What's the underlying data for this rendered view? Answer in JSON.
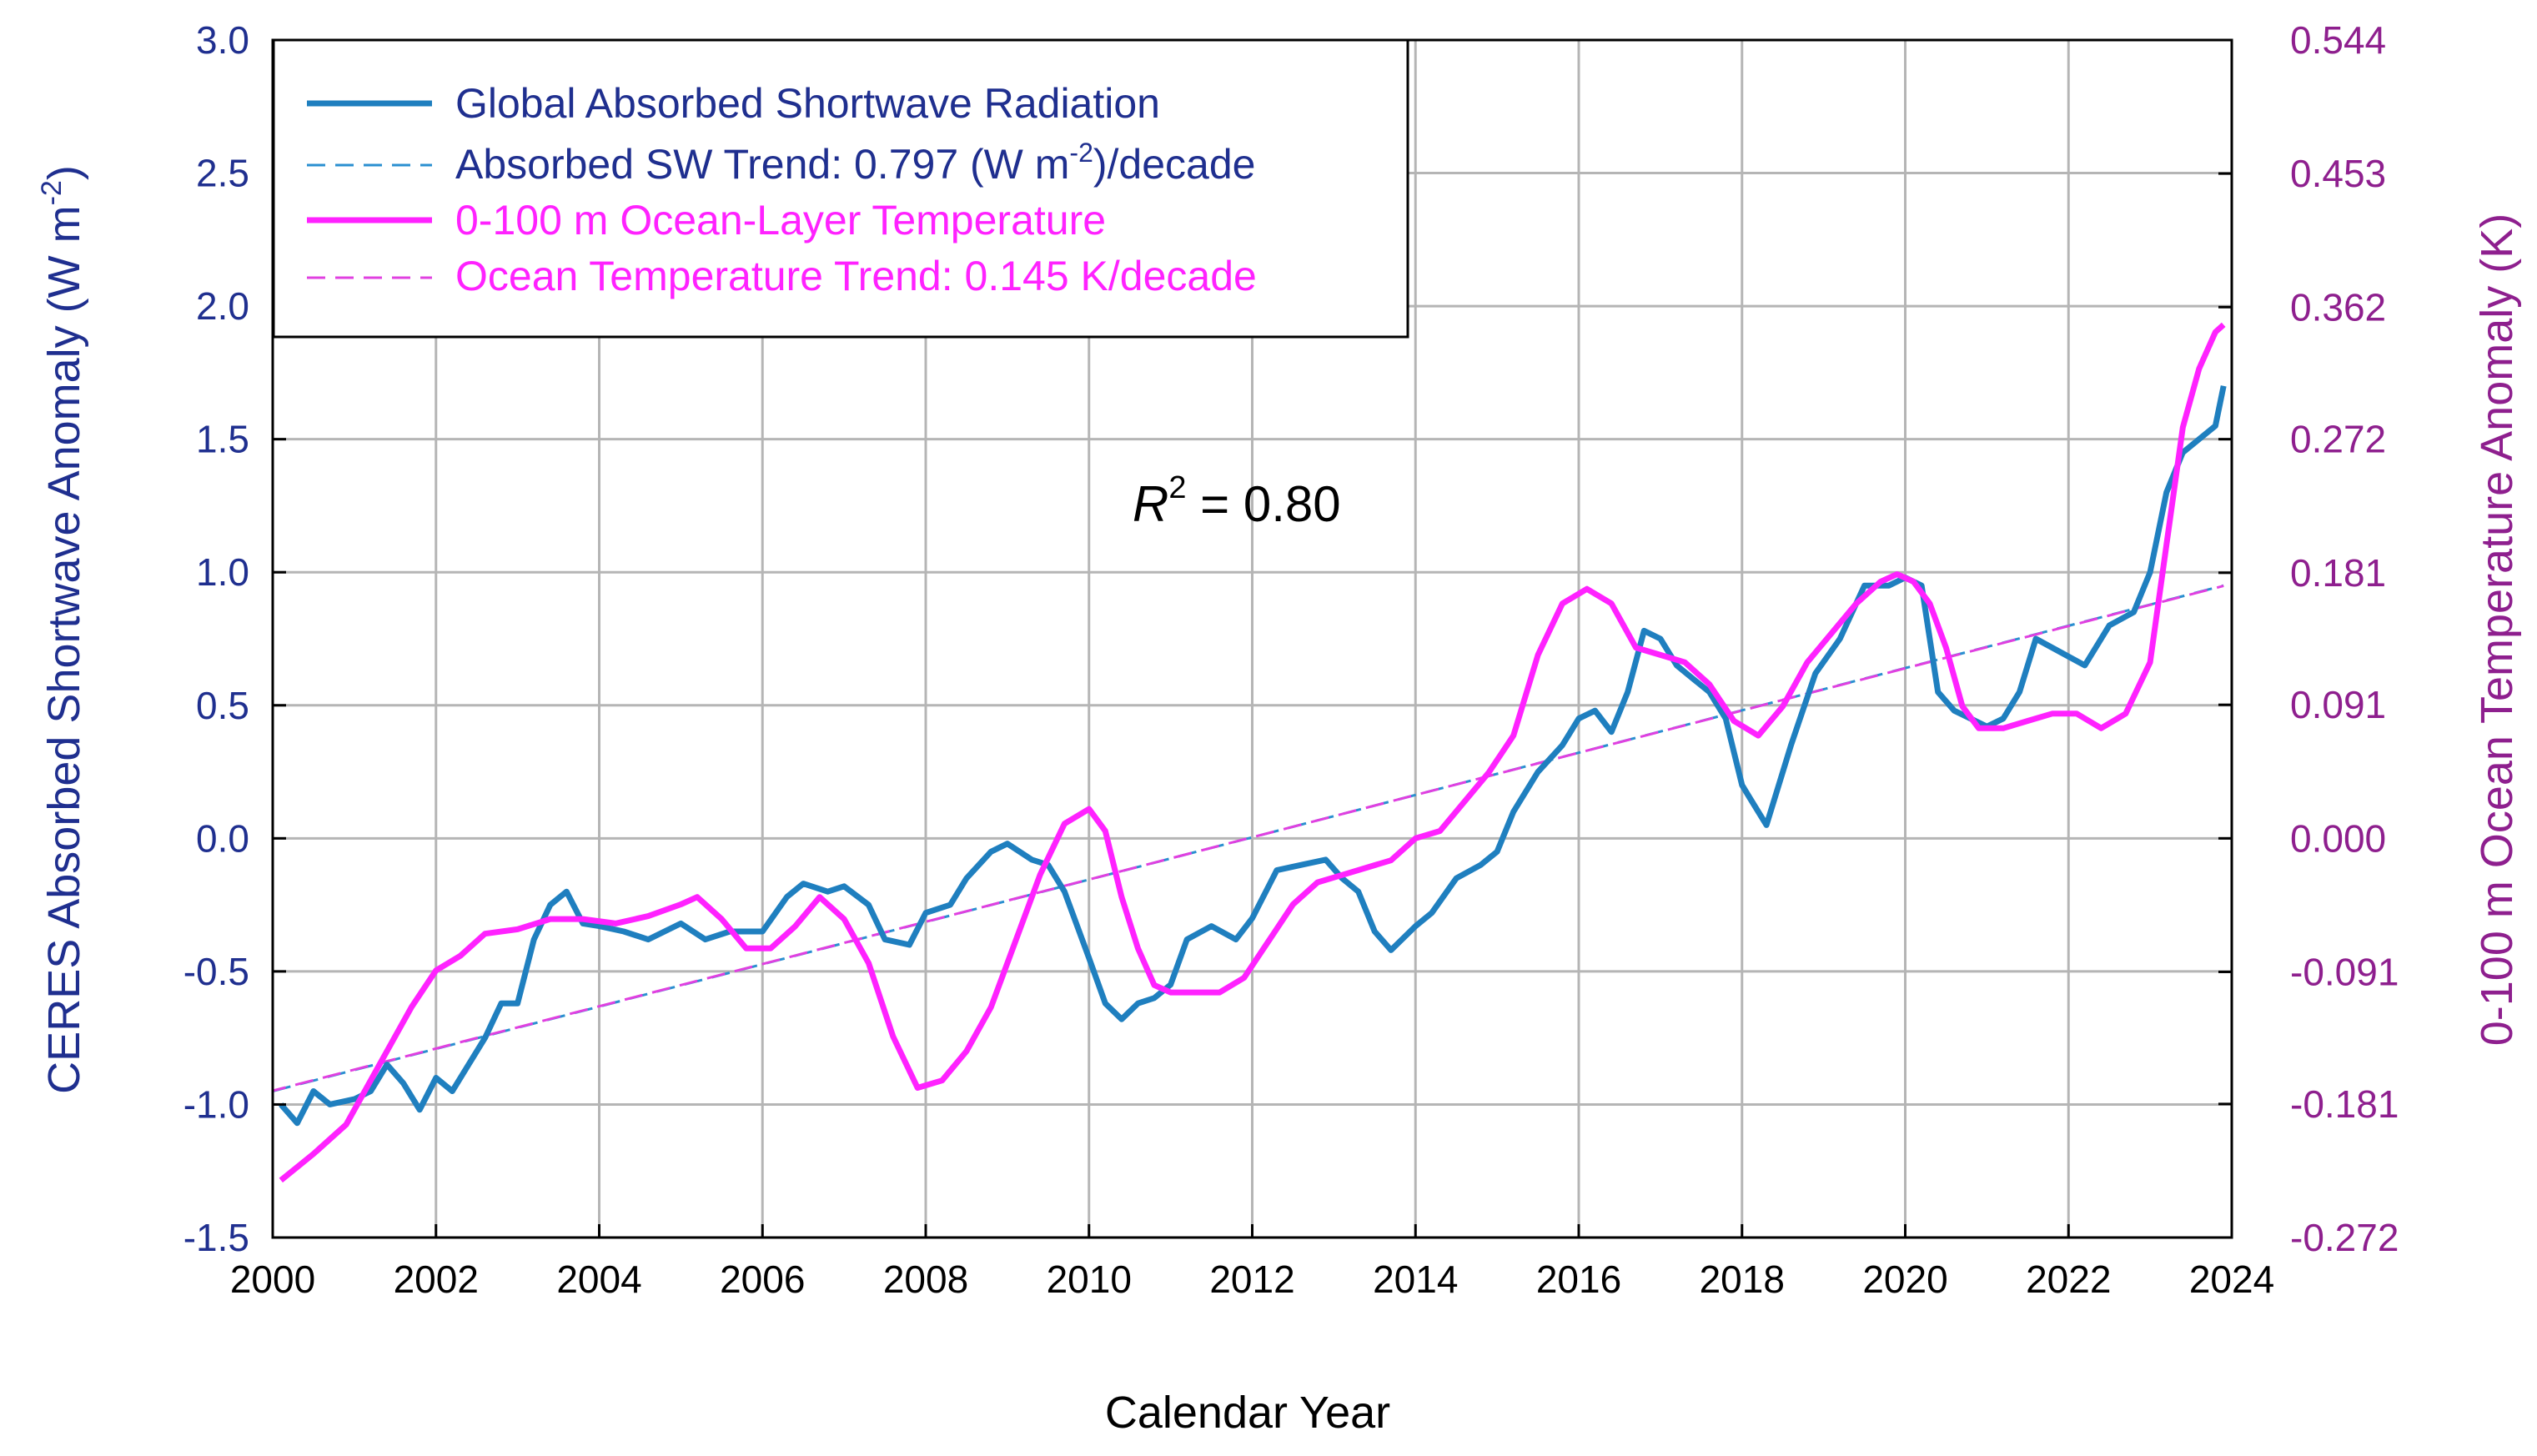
{
  "chart_data": {
    "type": "line",
    "title": "",
    "xlabel": "Calendar Year",
    "ylabel_left": "CERES Absorbed Shortwave Anomaly (W m⁻²)",
    "ylabel_left_text": "CERES Absorbed Shortwave Anomaly (W m",
    "ylabel_left_sup": "-2",
    "ylabel_left_end": ")",
    "ylabel_right": "0-100 m Ocean Temperature Anomaly (K)",
    "xlim": [
      2000,
      2024
    ],
    "ylim_left": [
      -1.5,
      3.0
    ],
    "ylim_right": [
      -0.272,
      0.544
    ],
    "x_ticks": [
      "2000",
      "2002",
      "2004",
      "2006",
      "2008",
      "2010",
      "2012",
      "2014",
      "2016",
      "2018",
      "2020",
      "2022",
      "2024"
    ],
    "y_ticks_left": [
      "-1.5",
      "-1.0",
      "-0.5",
      "0.0",
      "0.5",
      "1.0",
      "1.5",
      "2.0",
      "2.5",
      "3.0"
    ],
    "y_ticks_right": [
      "-0.272",
      "-0.181",
      "-0.091",
      "0.000",
      "0.091",
      "0.181",
      "0.272",
      "0.362",
      "0.453",
      "0.544"
    ],
    "grid": true,
    "annotation": {
      "prefix": "R",
      "sup": "2",
      "suffix": " = 0.80",
      "x": 2011.6,
      "y": 1.25
    },
    "colors": {
      "shortwave": "#1f7fbf",
      "ocean": "#ff22ff",
      "sw_trend": "#2a8fd0",
      "ocean_trend": "#e040e0",
      "left_axis": "#1f2f8f",
      "right_axis": "#8e1f8e",
      "grid": "#b5b5b5"
    },
    "legend": {
      "position": "top-left",
      "entries": [
        {
          "label": "Global Absorbed Shortwave Radiation",
          "style": "solid",
          "color": "#1f7fbf",
          "text_color": "#1f2f8f"
        },
        {
          "label": "Absorbed SW Trend: 0.797 (W m",
          "sup": "-2",
          "label_end": ")/decade",
          "style": "dashed",
          "color": "#2a8fd0",
          "text_color": "#1f2f8f"
        },
        {
          "label": "0-100 m Ocean-Layer Temperature",
          "style": "solid",
          "color": "#ff22ff",
          "text_color": "#ff22ff"
        },
        {
          "label": "Ocean Temperature Trend: 0.145 K/decade",
          "style": "dashed",
          "color": "#e040e0",
          "text_color": "#ff22ff"
        }
      ]
    },
    "series": [
      {
        "name": "Global Absorbed Shortwave Radiation",
        "axis": "left",
        "x": [
          2000.1,
          2000.3,
          2000.5,
          2000.7,
          2001.0,
          2001.2,
          2001.4,
          2001.6,
          2001.8,
          2002.0,
          2002.2,
          2002.4,
          2002.6,
          2002.8,
          2003.0,
          2003.2,
          2003.4,
          2003.6,
          2003.8,
          2004.0,
          2004.3,
          2004.6,
          2005.0,
          2005.3,
          2005.6,
          2006.0,
          2006.3,
          2006.5,
          2006.8,
          2007.0,
          2007.3,
          2007.5,
          2007.8,
          2008.0,
          2008.3,
          2008.5,
          2008.8,
          2009.0,
          2009.3,
          2009.5,
          2009.7,
          2010.0,
          2010.2,
          2010.4,
          2010.6,
          2010.8,
          2011.0,
          2011.2,
          2011.5,
          2011.8,
          2012.0,
          2012.3,
          2012.6,
          2012.9,
          2013.1,
          2013.3,
          2013.5,
          2013.7,
          2014.0,
          2014.2,
          2014.5,
          2014.8,
          2015.0,
          2015.2,
          2015.5,
          2015.8,
          2016.0,
          2016.2,
          2016.4,
          2016.6,
          2016.8,
          2017.0,
          2017.2,
          2017.4,
          2017.6,
          2017.8,
          2018.0,
          2018.1,
          2018.3,
          2018.6,
          2018.9,
          2019.2,
          2019.5,
          2019.8,
          2020.0,
          2020.2,
          2020.4,
          2020.6,
          2020.8,
          2021.0,
          2021.2,
          2021.4,
          2021.6,
          2021.9,
          2022.2,
          2022.5,
          2022.8,
          2023.0,
          2023.2,
          2023.4,
          2023.6,
          2023.8,
          2023.9
        ],
        "y": [
          -1.0,
          -1.07,
          -0.95,
          -1.0,
          -0.98,
          -0.95,
          -0.85,
          -0.92,
          -1.02,
          -0.9,
          -0.95,
          -0.85,
          -0.75,
          -0.62,
          -0.62,
          -0.38,
          -0.25,
          -0.2,
          -0.32,
          -0.33,
          -0.35,
          -0.38,
          -0.32,
          -0.38,
          -0.35,
          -0.35,
          -0.22,
          -0.17,
          -0.2,
          -0.18,
          -0.25,
          -0.38,
          -0.4,
          -0.28,
          -0.25,
          -0.15,
          -0.05,
          -0.02,
          -0.08,
          -0.1,
          -0.2,
          -0.45,
          -0.62,
          -0.68,
          -0.62,
          -0.6,
          -0.55,
          -0.38,
          -0.33,
          -0.38,
          -0.3,
          -0.12,
          -0.1,
          -0.08,
          -0.15,
          -0.2,
          -0.35,
          -0.42,
          -0.33,
          -0.28,
          -0.15,
          -0.1,
          -0.05,
          0.1,
          0.25,
          0.35,
          0.45,
          0.48,
          0.4,
          0.55,
          0.78,
          0.75,
          0.65,
          0.6,
          0.55,
          0.45,
          0.2,
          0.15,
          0.05,
          0.35,
          0.62,
          0.75,
          0.95,
          0.95,
          0.98,
          0.95,
          0.55,
          0.48,
          0.45,
          0.42,
          0.45,
          0.55,
          0.75,
          0.7,
          0.65,
          0.8,
          0.85,
          1.0,
          1.3,
          1.45,
          1.5,
          1.55,
          1.7
        ]
      },
      {
        "name": "0-100 m Ocean-Layer Temperature",
        "axis": "right",
        "x": [
          2000.1,
          2000.5,
          2000.9,
          2001.3,
          2001.7,
          2002.0,
          2002.3,
          2002.6,
          2003.0,
          2003.4,
          2003.8,
          2004.2,
          2004.6,
          2005.0,
          2005.2,
          2005.5,
          2005.8,
          2006.1,
          2006.4,
          2006.7,
          2007.0,
          2007.3,
          2007.6,
          2007.9,
          2008.2,
          2008.5,
          2008.8,
          2009.1,
          2009.4,
          2009.7,
          2010.0,
          2010.2,
          2010.4,
          2010.6,
          2010.8,
          2011.0,
          2011.3,
          2011.6,
          2011.9,
          2012.2,
          2012.5,
          2012.8,
          2013.1,
          2013.4,
          2013.7,
          2014.0,
          2014.3,
          2014.6,
          2014.9,
          2015.2,
          2015.5,
          2015.8,
          2016.1,
          2016.4,
          2016.7,
          2017.0,
          2017.3,
          2017.6,
          2017.9,
          2018.2,
          2018.5,
          2018.8,
          2019.1,
          2019.4,
          2019.7,
          2019.9,
          2020.1,
          2020.3,
          2020.5,
          2020.7,
          2020.9,
          2021.2,
          2021.5,
          2021.8,
          2022.1,
          2022.4,
          2022.7,
          2023.0,
          2023.2,
          2023.4,
          2023.6,
          2023.8,
          2023.9
        ],
        "y": [
          -0.233,
          -0.215,
          -0.195,
          -0.155,
          -0.115,
          -0.09,
          -0.08,
          -0.065,
          -0.062,
          -0.055,
          -0.055,
          -0.058,
          -0.053,
          -0.045,
          -0.04,
          -0.055,
          -0.075,
          -0.075,
          -0.06,
          -0.04,
          -0.055,
          -0.085,
          -0.135,
          -0.17,
          -0.165,
          -0.145,
          -0.115,
          -0.07,
          -0.025,
          0.01,
          0.02,
          0.005,
          -0.04,
          -0.075,
          -0.1,
          -0.105,
          -0.105,
          -0.105,
          -0.095,
          -0.07,
          -0.045,
          -0.03,
          -0.025,
          -0.02,
          -0.015,
          0.0,
          0.005,
          0.025,
          0.045,
          0.07,
          0.125,
          0.16,
          0.17,
          0.16,
          0.13,
          0.125,
          0.12,
          0.105,
          0.08,
          0.07,
          0.09,
          0.12,
          0.14,
          0.16,
          0.175,
          0.18,
          0.175,
          0.16,
          0.13,
          0.09,
          0.075,
          0.075,
          0.08,
          0.085,
          0.085,
          0.075,
          0.085,
          0.12,
          0.2,
          0.28,
          0.32,
          0.345,
          0.35
        ]
      },
      {
        "name": "Absorbed SW Trend",
        "axis": "left",
        "x": [
          2000,
          2023.9
        ],
        "y": [
          -0.95,
          0.95
        ]
      },
      {
        "name": "Ocean Temperature Trend",
        "axis": "right",
        "x": [
          2000,
          2023.9
        ],
        "y": [
          -0.172,
          0.172
        ]
      }
    ]
  }
}
